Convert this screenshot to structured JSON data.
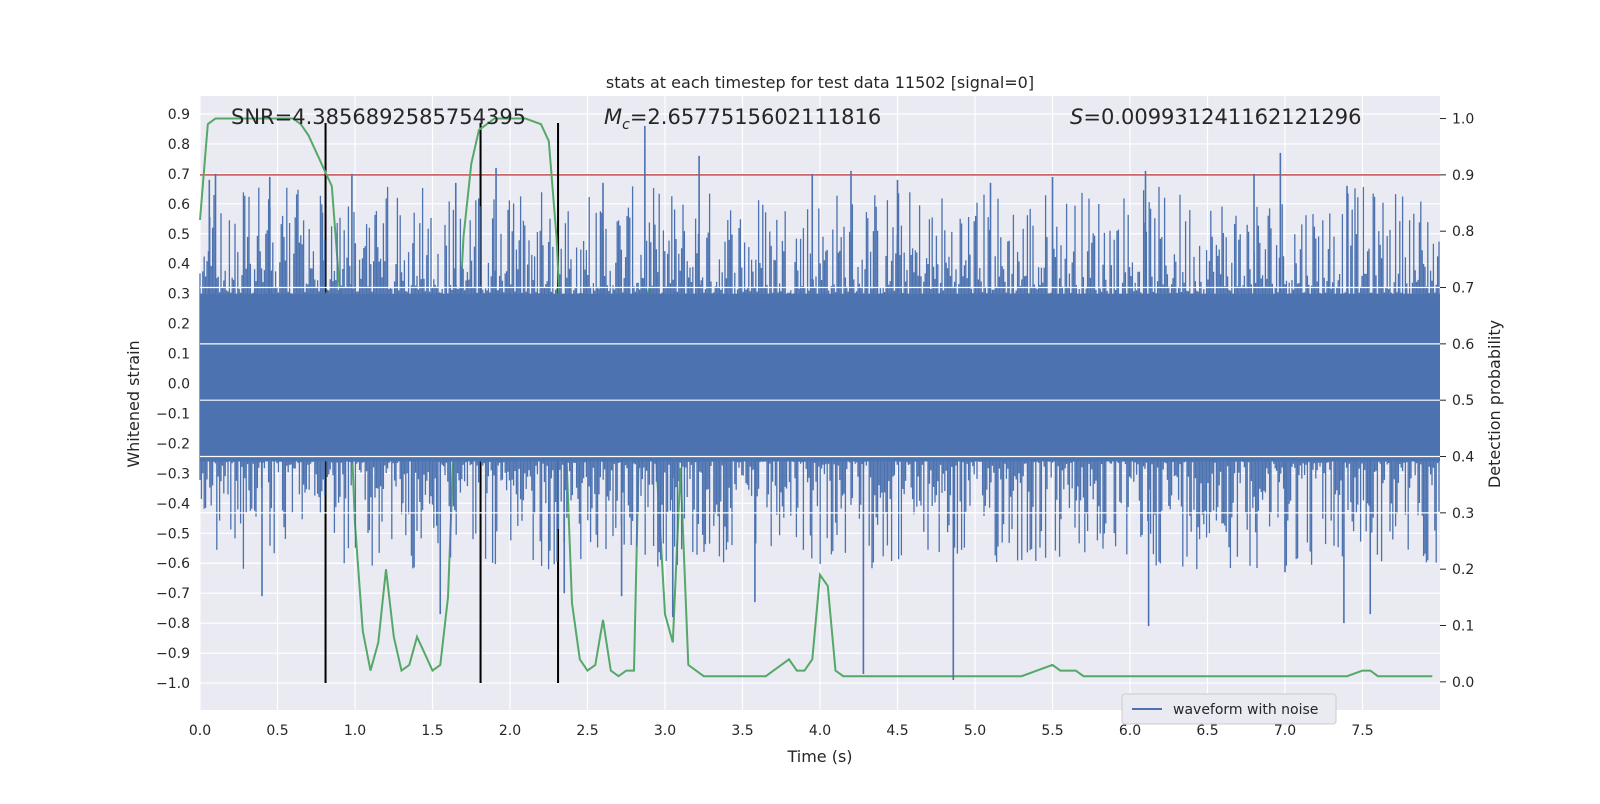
{
  "chart_data": {
    "type": "line",
    "title": "stats at each timestep for test data 11502 [signal=0]",
    "xlabel": "Time (s)",
    "ylabel_left": "Whitened strain",
    "ylabel_right": "Detection probability",
    "xlim": [
      0.0,
      8.0
    ],
    "ylim_left": [
      -1.09,
      0.96
    ],
    "ylim_right": [
      -0.05,
      1.04
    ],
    "x_ticks": [
      0.0,
      0.5,
      1.0,
      1.5,
      2.0,
      2.5,
      3.0,
      3.5,
      4.0,
      4.5,
      5.0,
      5.5,
      6.0,
      6.5,
      7.0,
      7.5
    ],
    "x_tick_labels": [
      "0.0",
      "0.5",
      "1.0",
      "1.5",
      "2.0",
      "2.5",
      "3.0",
      "3.5",
      "4.0",
      "4.5",
      "5.0",
      "5.5",
      "6.0",
      "6.5",
      "7.0",
      "7.5"
    ],
    "y_left_ticks": [
      0.9,
      0.8,
      0.7,
      0.6,
      0.5,
      0.4,
      0.3,
      0.2,
      0.1,
      0.0,
      -0.1,
      -0.2,
      -0.3,
      -0.4,
      -0.5,
      -0.6,
      -0.7,
      -0.8,
      -0.9,
      -1.0
    ],
    "y_left_tick_labels": [
      "0.9",
      "0.8",
      "0.7",
      "0.6",
      "0.5",
      "0.4",
      "0.3",
      "0.2",
      "0.1",
      "0.0",
      "−0.1",
      "−0.2",
      "−0.3",
      "−0.4",
      "−0.5",
      "−0.6",
      "−0.7",
      "−0.8",
      "−0.9",
      "−1.0"
    ],
    "y_right_ticks": [
      1.0,
      0.9,
      0.8,
      0.7,
      0.6,
      0.5,
      0.4,
      0.3,
      0.2,
      0.1,
      0.0
    ],
    "y_right_tick_labels": [
      "1.0",
      "0.9",
      "0.8",
      "0.7",
      "0.6",
      "0.5",
      "0.4",
      "0.3",
      "0.2",
      "0.1",
      "0.0"
    ],
    "annotations": {
      "snr": "SNR=4.3856892585754395",
      "mc_symbol": "M",
      "mc_sub": "c",
      "mc_value": "=2.6577515602111816",
      "s_symbol": "S",
      "s_value": "=0.009931241162121296"
    },
    "threshold_line": {
      "axis": "right",
      "value": 0.9,
      "color": "#c44e52"
    },
    "vertical_markers": {
      "x": [
        0.81,
        1.81,
        2.31
      ],
      "y_range": [
        -1.0,
        0.87
      ],
      "color": "#000000"
    },
    "waveform": {
      "name": "waveform with noise",
      "color": "#4c72b0",
      "core_band": [
        -0.26,
        0.3
      ],
      "x_range": [
        0.0,
        8.0
      ],
      "spikes": [
        {
          "x": 0.06,
          "value": 0.68
        },
        {
          "x": 0.1,
          "value": 0.7
        },
        {
          "x": 0.45,
          "value": 0.69
        },
        {
          "x": 0.79,
          "value": 0.57
        },
        {
          "x": 0.98,
          "value": 0.7
        },
        {
          "x": 1.65,
          "value": 0.67
        },
        {
          "x": 1.91,
          "value": 0.72
        },
        {
          "x": 2.6,
          "value": 0.67
        },
        {
          "x": 2.87,
          "value": 0.86
        },
        {
          "x": 3.22,
          "value": 0.76
        },
        {
          "x": 3.95,
          "value": 0.7
        },
        {
          "x": 4.2,
          "value": 0.71
        },
        {
          "x": 4.5,
          "value": 0.68
        },
        {
          "x": 5.1,
          "value": 0.67
        },
        {
          "x": 5.5,
          "value": 0.69
        },
        {
          "x": 6.1,
          "value": 0.71
        },
        {
          "x": 6.8,
          "value": 0.7
        },
        {
          "x": 6.97,
          "value": 0.77
        },
        {
          "x": 7.4,
          "value": 0.66
        },
        {
          "x": 0.4,
          "value": -0.71
        },
        {
          "x": 1.55,
          "value": -0.77
        },
        {
          "x": 2.35,
          "value": -0.7
        },
        {
          "x": 2.72,
          "value": -0.71
        },
        {
          "x": 3.05,
          "value": -0.78
        },
        {
          "x": 3.58,
          "value": -0.73
        },
        {
          "x": 4.28,
          "value": -0.97
        },
        {
          "x": 4.86,
          "value": -0.99
        },
        {
          "x": 6.12,
          "value": -0.81
        },
        {
          "x": 7.0,
          "value": -0.63
        },
        {
          "x": 7.38,
          "value": -0.8
        },
        {
          "x": 7.55,
          "value": -0.77
        }
      ]
    },
    "probability_series": {
      "color": "#55a868",
      "x": [
        0.0,
        0.05,
        0.1,
        0.15,
        0.2,
        0.3,
        0.4,
        0.5,
        0.6,
        0.65,
        0.7,
        0.75,
        0.8,
        0.85,
        0.9,
        0.95,
        1.0,
        1.05,
        1.1,
        1.15,
        1.2,
        1.25,
        1.3,
        1.35,
        1.4,
        1.45,
        1.5,
        1.55,
        1.6,
        1.65,
        1.7,
        1.75,
        1.8,
        1.85,
        1.9,
        1.95,
        2.0,
        2.05,
        2.1,
        2.2,
        2.25,
        2.3,
        2.35,
        2.4,
        2.45,
        2.5,
        2.55,
        2.6,
        2.65,
        2.7,
        2.75,
        2.8,
        2.85,
        2.9,
        2.95,
        3.0,
        3.05,
        3.1,
        3.15,
        3.2,
        3.25,
        3.3,
        3.4,
        3.5,
        3.6,
        3.65,
        3.7,
        3.75,
        3.8,
        3.85,
        3.9,
        3.95,
        4.0,
        4.05,
        4.1,
        4.15,
        4.2,
        4.25,
        4.3,
        4.4,
        4.5,
        4.6,
        4.7,
        4.8,
        4.9,
        5.0,
        5.1,
        5.2,
        5.3,
        5.4,
        5.5,
        5.55,
        5.6,
        5.65,
        5.7,
        5.8,
        5.9,
        6.0,
        6.2,
        6.4,
        6.6,
        6.8,
        7.0,
        7.2,
        7.4,
        7.5,
        7.55,
        7.6,
        7.65,
        7.7,
        7.8,
        7.9,
        7.95
      ],
      "values": [
        0.82,
        0.99,
        1.0,
        1.0,
        1.0,
        1.0,
        1.0,
        1.0,
        1.0,
        0.99,
        0.97,
        0.94,
        0.91,
        0.88,
        0.7,
        0.62,
        0.28,
        0.09,
        0.02,
        0.07,
        0.2,
        0.08,
        0.02,
        0.03,
        0.08,
        0.05,
        0.02,
        0.03,
        0.15,
        0.52,
        0.79,
        0.92,
        0.98,
        0.99,
        1.0,
        1.0,
        1.0,
        1.0,
        1.0,
        0.99,
        0.96,
        0.79,
        0.5,
        0.14,
        0.04,
        0.02,
        0.03,
        0.11,
        0.02,
        0.01,
        0.02,
        0.02,
        0.65,
        0.7,
        0.36,
        0.12,
        0.07,
        0.38,
        0.03,
        0.02,
        0.01,
        0.01,
        0.01,
        0.01,
        0.01,
        0.01,
        0.02,
        0.03,
        0.04,
        0.02,
        0.02,
        0.04,
        0.19,
        0.17,
        0.02,
        0.01,
        0.01,
        0.01,
        0.01,
        0.01,
        0.01,
        0.01,
        0.01,
        0.01,
        0.01,
        0.01,
        0.01,
        0.01,
        0.01,
        0.02,
        0.03,
        0.02,
        0.02,
        0.02,
        0.01,
        0.01,
        0.01,
        0.01,
        0.01,
        0.01,
        0.01,
        0.01,
        0.01,
        0.01,
        0.01,
        0.02,
        0.02,
        0.01,
        0.01,
        0.01,
        0.01,
        0.01,
        0.01
      ]
    },
    "legend": {
      "labels": [
        "waveform with noise"
      ],
      "placement": "lower-right"
    }
  }
}
